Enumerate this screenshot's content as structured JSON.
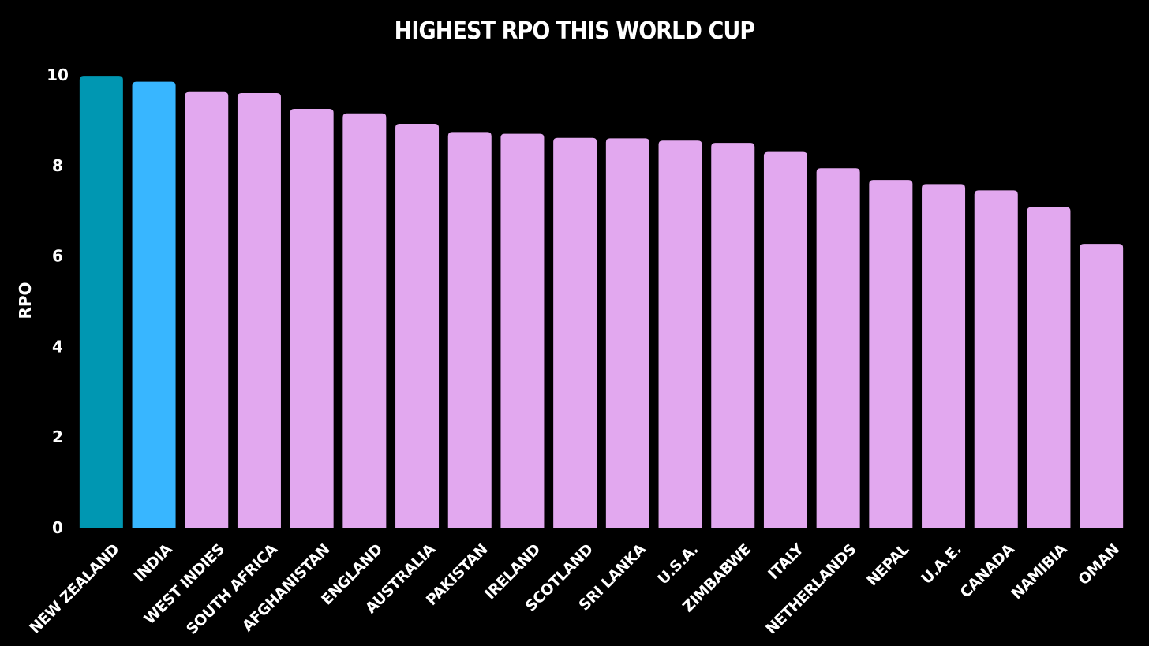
{
  "chart_data": {
    "type": "bar",
    "title": "HIGHEST RPO THIS WORLD CUP",
    "xlabel": "",
    "ylabel": "RPO",
    "ylim": [
      0,
      10
    ],
    "yticks": [
      "0",
      "2",
      "4",
      "6",
      "8",
      "10"
    ],
    "categories": [
      "NEW ZEALAND",
      "INDIA",
      "WEST INDIES",
      "SOUTH AFRICA",
      "AFGHANISTAN",
      "ENGLAND",
      "AUSTRALIA",
      "PAKISTAN",
      "IRELAND",
      "SCOTLAND",
      "SRI LANKA",
      "U.S.A.",
      "ZIMBABWE",
      "ITALY",
      "NETHERLANDS",
      "NEPAL",
      "U.A.E.",
      "CANADA",
      "NAMIBIA",
      "OMAN"
    ],
    "values": [
      9.98,
      9.85,
      9.62,
      9.6,
      9.25,
      9.15,
      8.92,
      8.74,
      8.7,
      8.61,
      8.6,
      8.55,
      8.5,
      8.3,
      7.94,
      7.68,
      7.59,
      7.45,
      7.08,
      6.27
    ],
    "bar_colors": [
      "#0097B2",
      "#38B6FF",
      "#E2A8EF",
      "#E2A8EF",
      "#E2A8EF",
      "#E2A8EF",
      "#E2A8EF",
      "#E2A8EF",
      "#E2A8EF",
      "#E2A8EF",
      "#E2A8EF",
      "#E2A8EF",
      "#E2A8EF",
      "#E2A8EF",
      "#E2A8EF",
      "#E2A8EF",
      "#E2A8EF",
      "#E2A8EF",
      "#E2A8EF",
      "#E2A8EF"
    ],
    "background": "#000000",
    "grid": false,
    "legend": "none"
  }
}
